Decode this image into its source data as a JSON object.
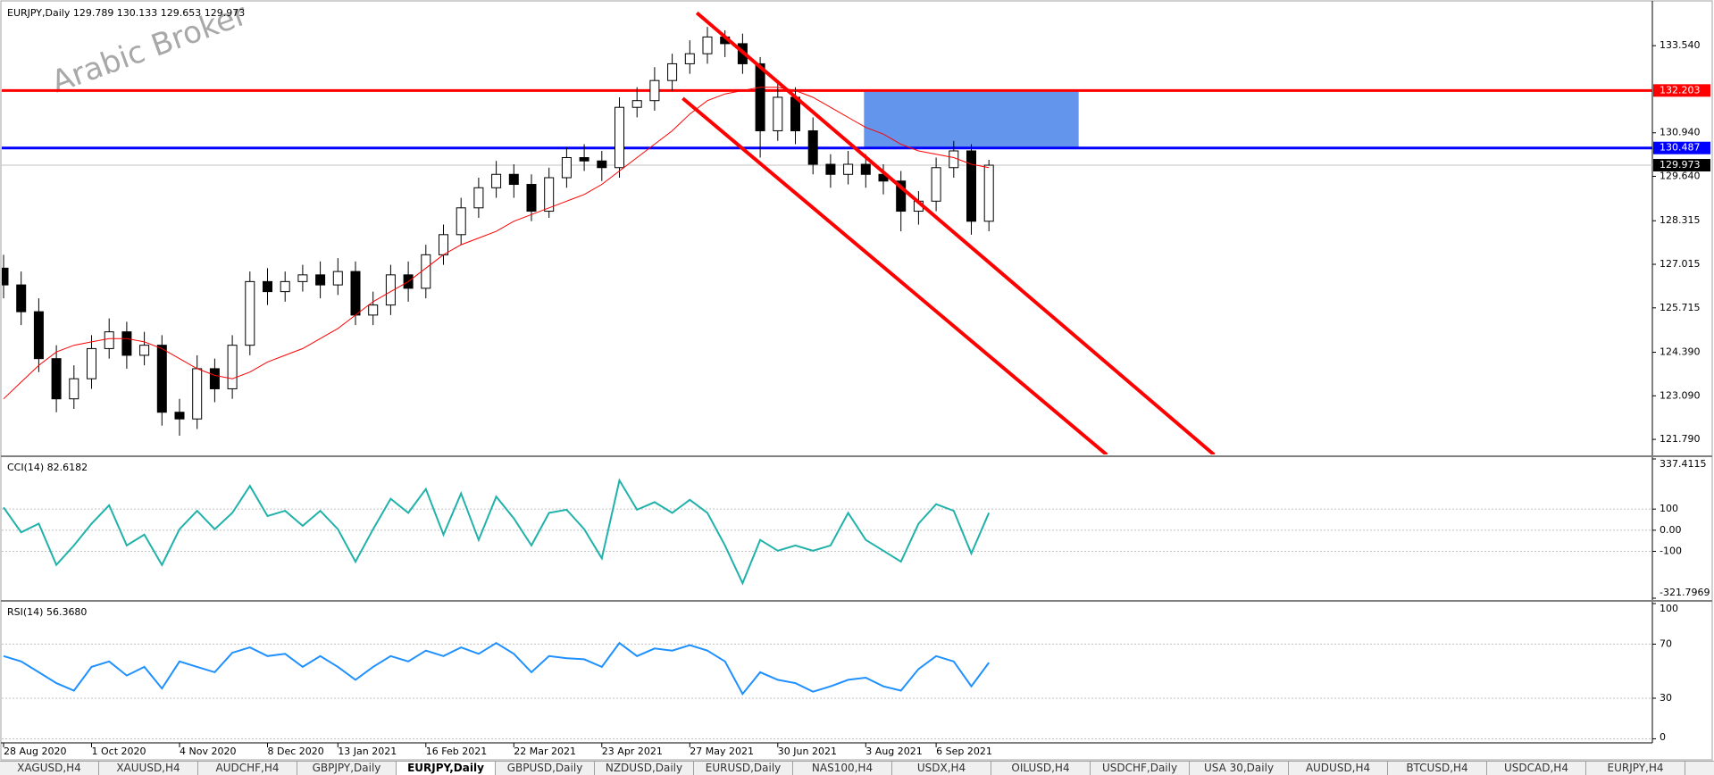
{
  "watermark": "Arabic Broker",
  "chart_data": [
    {
      "type": "candlestick",
      "title": "EURJPY,Daily  129.789 130.133 129.653 129.973",
      "categories": [
        "28 Aug 2020",
        null,
        null,
        null,
        null,
        "1 Oct 2020",
        null,
        null,
        null,
        null,
        "4 Nov 2020",
        null,
        null,
        null,
        null,
        "8 Dec 2020",
        null,
        null,
        null,
        "13 Jan 2021",
        null,
        null,
        null,
        null,
        "16 Feb 2021",
        null,
        null,
        null,
        null,
        "22 Mar 2021",
        null,
        null,
        null,
        null,
        "23 Apr 2021",
        null,
        null,
        null,
        null,
        "27 May 2021",
        null,
        null,
        null,
        null,
        "30 Jun 2021",
        null,
        null,
        null,
        null,
        "3 Aug 2021",
        null,
        null,
        null,
        "6 Sep 2021",
        null,
        null,
        null
      ],
      "open": [
        126.9,
        126.4,
        125.6,
        124.2,
        123.0,
        123.6,
        124.5,
        125.0,
        124.3,
        124.6,
        122.6,
        122.4,
        123.9,
        123.3,
        124.6,
        126.5,
        126.2,
        126.5,
        126.7,
        126.4,
        126.8,
        125.5,
        125.8,
        126.7,
        126.3,
        127.3,
        127.9,
        128.7,
        129.3,
        129.7,
        129.4,
        128.6,
        129.6,
        130.2,
        130.1,
        129.9,
        131.7,
        131.9,
        132.5,
        133.0,
        133.3,
        133.8,
        133.6,
        133.0,
        131.0,
        132.0,
        131.0,
        130.0,
        129.7,
        130.0,
        129.7,
        129.5,
        128.6,
        128.9,
        129.9,
        130.4,
        128.3
      ],
      "high": [
        127.3,
        126.8,
        126.0,
        124.6,
        124.0,
        124.9,
        125.4,
        125.3,
        125.0,
        124.9,
        123.0,
        124.3,
        124.2,
        124.9,
        126.8,
        126.9,
        126.8,
        127.0,
        127.1,
        127.2,
        127.1,
        126.2,
        127.0,
        127.1,
        127.6,
        128.2,
        129.0,
        129.6,
        130.1,
        130.0,
        129.7,
        129.9,
        130.5,
        130.6,
        130.4,
        132.0,
        132.3,
        132.9,
        133.3,
        133.7,
        134.1,
        134.0,
        133.9,
        133.2,
        132.4,
        132.3,
        131.4,
        130.3,
        130.4,
        130.3,
        130.0,
        129.8,
        129.2,
        130.2,
        130.7,
        130.6,
        130.133
      ],
      "low": [
        126.0,
        125.2,
        123.8,
        122.6,
        122.7,
        123.3,
        124.2,
        123.9,
        124.0,
        122.2,
        121.9,
        122.1,
        122.9,
        123.0,
        124.3,
        125.8,
        125.9,
        126.2,
        126.0,
        126.1,
        125.2,
        125.2,
        125.5,
        125.9,
        126.0,
        127.0,
        127.6,
        128.4,
        129.0,
        129.0,
        128.3,
        128.4,
        129.3,
        129.8,
        129.5,
        129.6,
        131.4,
        131.6,
        132.2,
        132.7,
        133.0,
        133.2,
        132.7,
        130.2,
        130.7,
        130.6,
        129.7,
        129.3,
        129.4,
        129.3,
        129.1,
        128.0,
        128.2,
        128.6,
        129.6,
        127.9,
        128.0
      ],
      "close": [
        126.4,
        125.6,
        124.2,
        123.0,
        123.6,
        124.5,
        125.0,
        124.3,
        124.6,
        122.6,
        122.4,
        123.9,
        123.3,
        124.6,
        126.5,
        126.2,
        126.5,
        126.7,
        126.4,
        126.8,
        125.5,
        125.8,
        126.7,
        126.3,
        127.3,
        127.9,
        128.7,
        129.3,
        129.7,
        129.4,
        128.6,
        129.6,
        130.2,
        130.1,
        129.9,
        131.7,
        131.9,
        132.5,
        133.0,
        133.3,
        133.8,
        133.6,
        133.0,
        131.0,
        132.0,
        131.0,
        130.0,
        129.7,
        130.0,
        129.7,
        129.5,
        128.6,
        128.9,
        129.9,
        130.4,
        128.3,
        129.973
      ],
      "up_color": "#ffffff",
      "down_color": "#000000",
      "outline_color": "#000000",
      "moving_average": {
        "color": "#ff0000",
        "values": [
          123.0,
          123.5,
          124.0,
          124.4,
          124.6,
          124.7,
          124.8,
          124.8,
          124.7,
          124.5,
          124.2,
          123.9,
          123.7,
          123.6,
          123.8,
          124.1,
          124.3,
          124.5,
          124.8,
          125.1,
          125.5,
          125.9,
          126.2,
          126.5,
          126.9,
          127.3,
          127.6,
          127.8,
          128.0,
          128.3,
          128.5,
          128.7,
          128.9,
          129.1,
          129.4,
          129.8,
          130.2,
          130.6,
          131.0,
          131.5,
          131.9,
          132.1,
          132.2,
          132.3,
          132.3,
          132.2,
          132.0,
          131.7,
          131.4,
          131.1,
          130.9,
          130.6,
          130.4,
          130.3,
          130.2,
          130.0,
          129.9
        ]
      },
      "hlines": [
        {
          "value": 132.203,
          "color": "#ff0000",
          "box_color": "#ff0000"
        },
        {
          "value": 130.487,
          "color": "#0000ff",
          "box_color": "#0000ff"
        },
        {
          "value": 129.973,
          "color": "#c0c0c0",
          "box_color": "#000000"
        }
      ],
      "trendlines": [
        {
          "color": "#ff0000",
          "x": [
            39.4,
            68.8
          ],
          "y": [
            134.52,
            121.33
          ]
        },
        {
          "color": "#ff0000",
          "x": [
            38.6,
            62.7
          ],
          "y": [
            131.97,
            121.33
          ]
        }
      ],
      "zones": [
        {
          "color": "#6495ed",
          "x": [
            48.9,
            61.1
          ],
          "y": [
            130.487,
            132.203
          ]
        }
      ],
      "ylim": [
        121.34,
        134.77
      ],
      "yticks": [
        {
          "value": 133.54,
          "label": "133.540"
        },
        {
          "value": 130.94,
          "label": "130.940"
        },
        {
          "value": 129.64,
          "label": "129.640"
        },
        128.315,
        127.015,
        125.715,
        {
          "value": 124.39,
          "label": "124.390"
        },
        {
          "value": 123.09,
          "label": "123.090"
        },
        {
          "value": 121.79,
          "label": "121.790"
        }
      ],
      "grid": false
    },
    {
      "type": "line",
      "title": "CCI(14) 82.6182",
      "color": "#20b2aa",
      "values": [
        108,
        -10,
        31,
        -164,
        -72,
        31,
        118,
        -72,
        -21,
        -164,
        5,
        92,
        5,
        82,
        210,
        67,
        92,
        21,
        92,
        5,
        -149,
        5,
        149,
        82,
        195,
        -21,
        174,
        -46,
        159,
        56,
        -72,
        82,
        97,
        5,
        -133,
        236,
        97,
        133,
        82,
        144,
        82,
        -72,
        -251,
        -46,
        -97,
        -72,
        -97,
        -72,
        82,
        -46,
        -97,
        -149,
        31,
        123,
        92,
        -110,
        82.6182
      ],
      "ylim": [
        -321.7969,
        337.4115
      ],
      "yticks": [
        337.4115,
        100,
        {
          "value": 0,
          "label": "0.00"
        },
        -100,
        -321.7969
      ],
      "grid": true
    },
    {
      "type": "line",
      "title": "RSI(14) 56.3680",
      "color": "#1e90ff",
      "values": [
        61.2,
        57.2,
        49.2,
        41.2,
        35.6,
        53.2,
        57.2,
        46.8,
        53.2,
        37.2,
        57.2,
        53.2,
        49.2,
        63.6,
        67.6,
        61.2,
        62.8,
        53.2,
        61.2,
        53.2,
        43.6,
        53.2,
        61.2,
        57.2,
        65.2,
        61.2,
        67.6,
        62.8,
        70.8,
        62.8,
        49.2,
        61.2,
        59.6,
        58.8,
        53.2,
        70.8,
        61.2,
        66.8,
        65.2,
        69.2,
        65.2,
        57.2,
        33.2,
        49.2,
        43.6,
        41.2,
        34.8,
        38.8,
        43.6,
        45.2,
        38.8,
        35.6,
        51.6,
        61.2,
        57.2,
        38.8,
        56.368
      ],
      "ylim": [
        -3,
        100
      ],
      "yticks": [
        100,
        70,
        30,
        0
      ],
      "grid": true
    }
  ],
  "tabs": [
    "XAGUSD,H4",
    "XAUUSD,H4",
    "AUDCHF,H4",
    "GBPJPY,Daily",
    "EURJPY,Daily",
    "GBPUSD,Daily",
    "NZDUSD,Daily",
    "EURUSD,Daily",
    "NAS100,H4",
    "USDX,H4",
    "OILUSD,H4",
    "USDCHF,Daily",
    "USA 30,Daily",
    "AUDUSD,H4",
    "BTCUSD,H4",
    "USDCAD,H4",
    "EURJPY,H4"
  ],
  "active_tab": 4
}
